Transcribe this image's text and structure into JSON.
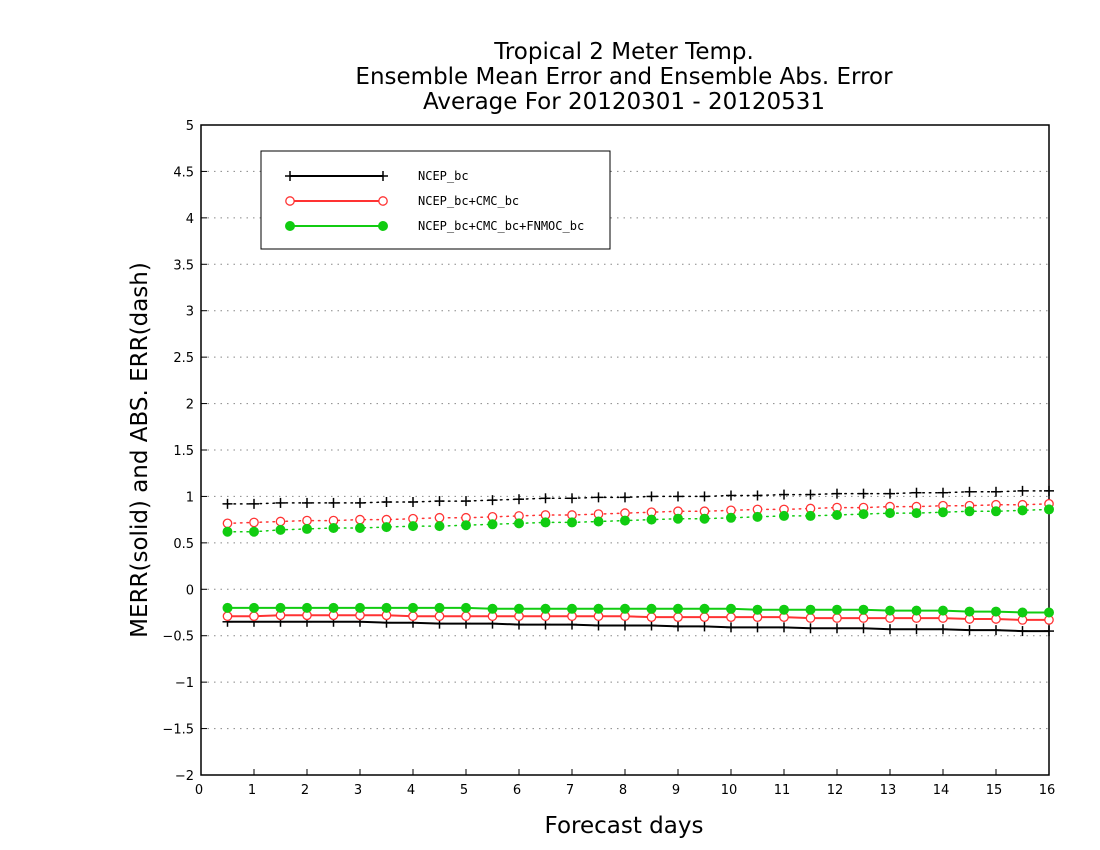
{
  "chart_data": {
    "type": "line",
    "title_lines": [
      "Tropical 2 Meter Temp.",
      "Ensemble Mean Error and Ensemble Abs. Error",
      "Average For 20120301 - 20120531"
    ],
    "xlabel": "Forecast days",
    "ylabel": "MERR(solid) and ABS. ERR(dash)",
    "xlim": [
      0,
      16
    ],
    "ylim": [
      -2,
      5
    ],
    "x_ticks": [
      0,
      1,
      2,
      3,
      4,
      5,
      6,
      7,
      8,
      9,
      10,
      11,
      12,
      13,
      14,
      15,
      16
    ],
    "x_tick_labels": [
      "0",
      "1",
      "2",
      "3",
      "4",
      "5",
      "6",
      "7",
      "8",
      "9",
      "10",
      "11",
      "12",
      "13",
      "14",
      "15",
      "16"
    ],
    "y_ticks": [
      -2,
      -1.5,
      -1,
      -0.5,
      0,
      0.5,
      1,
      1.5,
      2,
      2.5,
      3,
      3.5,
      4,
      4.5,
      5
    ],
    "y_tick_labels": [
      "−2",
      "−1.5",
      "−1",
      "−0.5",
      "0",
      "0.5",
      "1",
      "1.5",
      "2",
      "2.5",
      "3",
      "3.5",
      "4",
      "4.5",
      "5"
    ],
    "grid": "horizontal-dotted",
    "legend_position": "top-left",
    "x": [
      0.5,
      1,
      1.5,
      2,
      2.5,
      3,
      3.5,
      4,
      4.5,
      5,
      5.5,
      6,
      6.5,
      7,
      7.5,
      8,
      8.5,
      9,
      9.5,
      10,
      10.5,
      11,
      11.5,
      12,
      12.5,
      13,
      13.5,
      14,
      14.5,
      15,
      15.5,
      16
    ],
    "series": [
      {
        "name": "NCEP_bc",
        "color": "#000000",
        "marker": "plus",
        "mean_error": [
          -0.35,
          -0.35,
          -0.35,
          -0.35,
          -0.35,
          -0.35,
          -0.36,
          -0.36,
          -0.37,
          -0.37,
          -0.37,
          -0.38,
          -0.38,
          -0.38,
          -0.39,
          -0.39,
          -0.39,
          -0.4,
          -0.4,
          -0.41,
          -0.41,
          -0.41,
          -0.42,
          -0.42,
          -0.42,
          -0.43,
          -0.43,
          -0.43,
          -0.44,
          -0.44,
          -0.45,
          -0.45
        ],
        "abs_error": [
          0.92,
          0.92,
          0.93,
          0.93,
          0.93,
          0.93,
          0.94,
          0.94,
          0.95,
          0.95,
          0.96,
          0.97,
          0.98,
          0.98,
          0.99,
          0.99,
          1.0,
          1.0,
          1.0,
          1.01,
          1.01,
          1.02,
          1.02,
          1.03,
          1.03,
          1.03,
          1.04,
          1.04,
          1.05,
          1.05,
          1.06,
          1.06
        ]
      },
      {
        "name": "NCEP_bc+CMC_bc",
        "color": "#ff3333",
        "marker": "open-circle",
        "mean_error": [
          -0.29,
          -0.29,
          -0.28,
          -0.28,
          -0.28,
          -0.28,
          -0.28,
          -0.29,
          -0.29,
          -0.29,
          -0.29,
          -0.29,
          -0.29,
          -0.29,
          -0.29,
          -0.29,
          -0.3,
          -0.3,
          -0.3,
          -0.3,
          -0.3,
          -0.3,
          -0.31,
          -0.31,
          -0.31,
          -0.31,
          -0.31,
          -0.31,
          -0.32,
          -0.32,
          -0.33,
          -0.33
        ],
        "abs_error": [
          0.71,
          0.72,
          0.73,
          0.74,
          0.74,
          0.75,
          0.75,
          0.76,
          0.77,
          0.77,
          0.78,
          0.79,
          0.8,
          0.8,
          0.81,
          0.82,
          0.83,
          0.84,
          0.84,
          0.85,
          0.86,
          0.86,
          0.87,
          0.88,
          0.88,
          0.89,
          0.89,
          0.9,
          0.9,
          0.91,
          0.91,
          0.92
        ]
      },
      {
        "name": "NCEP_bc+CMC_bc+FNMOC_bc",
        "color": "#11cc11",
        "marker": "filled-circle",
        "mean_error": [
          -0.2,
          -0.2,
          -0.2,
          -0.2,
          -0.2,
          -0.2,
          -0.2,
          -0.2,
          -0.2,
          -0.2,
          -0.21,
          -0.21,
          -0.21,
          -0.21,
          -0.21,
          -0.21,
          -0.21,
          -0.21,
          -0.21,
          -0.21,
          -0.22,
          -0.22,
          -0.22,
          -0.22,
          -0.22,
          -0.23,
          -0.23,
          -0.23,
          -0.24,
          -0.24,
          -0.25,
          -0.25
        ],
        "abs_error": [
          0.62,
          0.62,
          0.64,
          0.65,
          0.66,
          0.66,
          0.67,
          0.68,
          0.68,
          0.69,
          0.7,
          0.71,
          0.72,
          0.72,
          0.73,
          0.74,
          0.75,
          0.76,
          0.76,
          0.77,
          0.78,
          0.79,
          0.79,
          0.8,
          0.81,
          0.82,
          0.82,
          0.83,
          0.84,
          0.84,
          0.85,
          0.86
        ]
      }
    ]
  }
}
